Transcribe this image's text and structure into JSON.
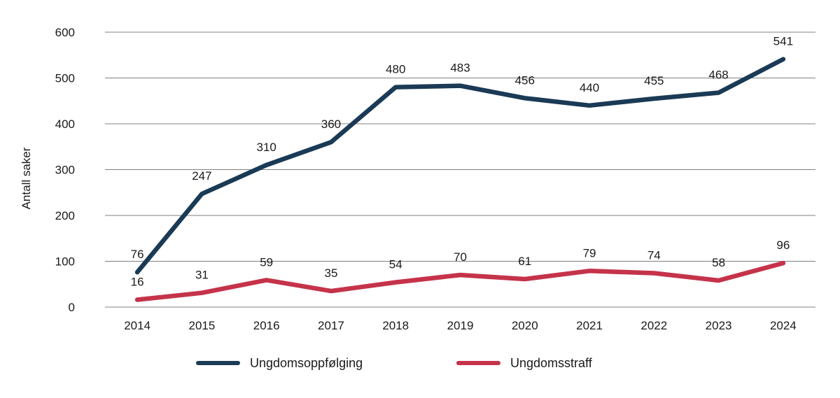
{
  "chart_data": {
    "type": "line",
    "categories": [
      "2014",
      "2015",
      "2016",
      "2017",
      "2018",
      "2019",
      "2020",
      "2021",
      "2022",
      "2023",
      "2024"
    ],
    "series": [
      {
        "name": "Ungdomsoppfølging",
        "color": "#1a3a55",
        "values": [
          76,
          247,
          310,
          360,
          480,
          483,
          456,
          440,
          455,
          468,
          541
        ]
      },
      {
        "name": "Ungdomsstraff",
        "color": "#c5334a",
        "values": [
          16,
          31,
          59,
          35,
          54,
          70,
          61,
          79,
          74,
          58,
          96
        ]
      }
    ],
    "title": "",
    "xlabel": "",
    "ylabel": "Antall saker",
    "ylim": [
      0,
      600
    ],
    "ytick_step": 100,
    "grid": true,
    "legend_position": "bottom",
    "gridline_color": "#808080",
    "text_color": "#1a1a1a",
    "data_labels_shown": true
  }
}
